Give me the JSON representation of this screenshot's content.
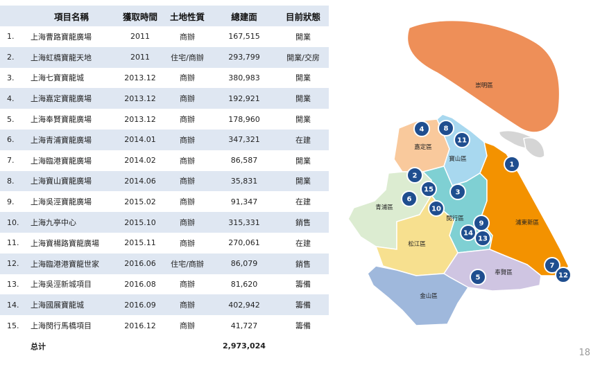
{
  "table": {
    "headers": [
      "",
      "項目名稱",
      "獲取時間",
      "土地性質",
      "總建面",
      "目前狀態"
    ],
    "rows": [
      {
        "no": "1.",
        "name": "上海曹路寶龍廣場",
        "year": "2011",
        "land": "商辦",
        "area": "167,515",
        "status": "開業"
      },
      {
        "no": "2.",
        "name": "上海虹橋寶龍天地",
        "year": "2011",
        "land": "住宅/商辦",
        "area": "293,799",
        "status": "開業/交房"
      },
      {
        "no": "3.",
        "name": "上海七寶寶龍城",
        "year": "2013.12",
        "land": "商辦",
        "area": "380,983",
        "status": "開業"
      },
      {
        "no": "4.",
        "name": "上海嘉定寶龍廣場",
        "year": "2013.12",
        "land": "商辦",
        "area": "192,921",
        "status": "開業"
      },
      {
        "no": "5.",
        "name": "上海奉賢寶龍廣場",
        "year": "2013.12",
        "land": "商辦",
        "area": "178,960",
        "status": "開業"
      },
      {
        "no": "6.",
        "name": "上海青浦寶龍廣場",
        "year": "2014.01",
        "land": "商辦",
        "area": "347,321",
        "status": "在建"
      },
      {
        "no": "7.",
        "name": "上海臨港寶龍廣場",
        "year": "2014.02",
        "land": "商辦",
        "area": "86,587",
        "status": "開業"
      },
      {
        "no": "8.",
        "name": "上海寶山寶龍廣場",
        "year": "2014.06",
        "land": "商辦",
        "area": "35,831",
        "status": "開業"
      },
      {
        "no": "9.",
        "name": "上海吳涇寶龍廣場",
        "year": "2015.02",
        "land": "商辦",
        "area": "91,347",
        "status": "在建"
      },
      {
        "no": "10.",
        "name": "上海九亭中心",
        "year": "2015.10",
        "land": "商辦",
        "area": "315,331",
        "status": "銷售"
      },
      {
        "no": "11.",
        "name": "上海寶楊路寶龍廣場",
        "year": "2015.11",
        "land": "商辦",
        "area": "270,061",
        "status": "在建"
      },
      {
        "no": "12.",
        "name": "上海臨港港寶龍世家",
        "year": "2016.06",
        "land": "住宅/商辦",
        "area": "86,079",
        "status": "銷售"
      },
      {
        "no": "13.",
        "name": "上海吳涇新城項目",
        "year": "2016.08",
        "land": "商辦",
        "area": "81,620",
        "status": "籌備"
      },
      {
        "no": "14.",
        "name": "上海國展寶龍城",
        "year": "2016.09",
        "land": "商辦",
        "area": "402,942",
        "status": "籌備"
      },
      {
        "no": "15.",
        "name": "上海閔行馬橋項目",
        "year": "2016.12",
        "land": "商辦",
        "area": "41,727",
        "status": "籌備"
      }
    ],
    "total_label": "总计",
    "total_value": "2,973,024"
  },
  "map": {
    "districts": {
      "chongming": "崇明區",
      "jiading": "嘉定區",
      "baoshan": "寶山區",
      "qingpu": "青浦區",
      "minhang": "閔行區",
      "pudong": "浦東新區",
      "songjiang": "松江區",
      "fengxian": "奉賢區",
      "jinshan": "金山區"
    },
    "marker_labels": [
      "1",
      "2",
      "3",
      "4",
      "5",
      "6",
      "7",
      "8",
      "9",
      "10",
      "11",
      "12",
      "13",
      "14",
      "15"
    ],
    "colors": {
      "chongming": "#ee8f58",
      "pudong": "#f39200",
      "jiading": "#f9c99c",
      "baoshan": "#a8d8ef",
      "qingpu": "#dcecd1",
      "minhang": "#7fd0d3",
      "songjiang": "#f7e08f",
      "fengxian": "#cfc5e2",
      "jinshan": "#9fb8dc",
      "marker": "#1f4e8f",
      "island": "#d5d5d5"
    }
  },
  "page_number": "18"
}
